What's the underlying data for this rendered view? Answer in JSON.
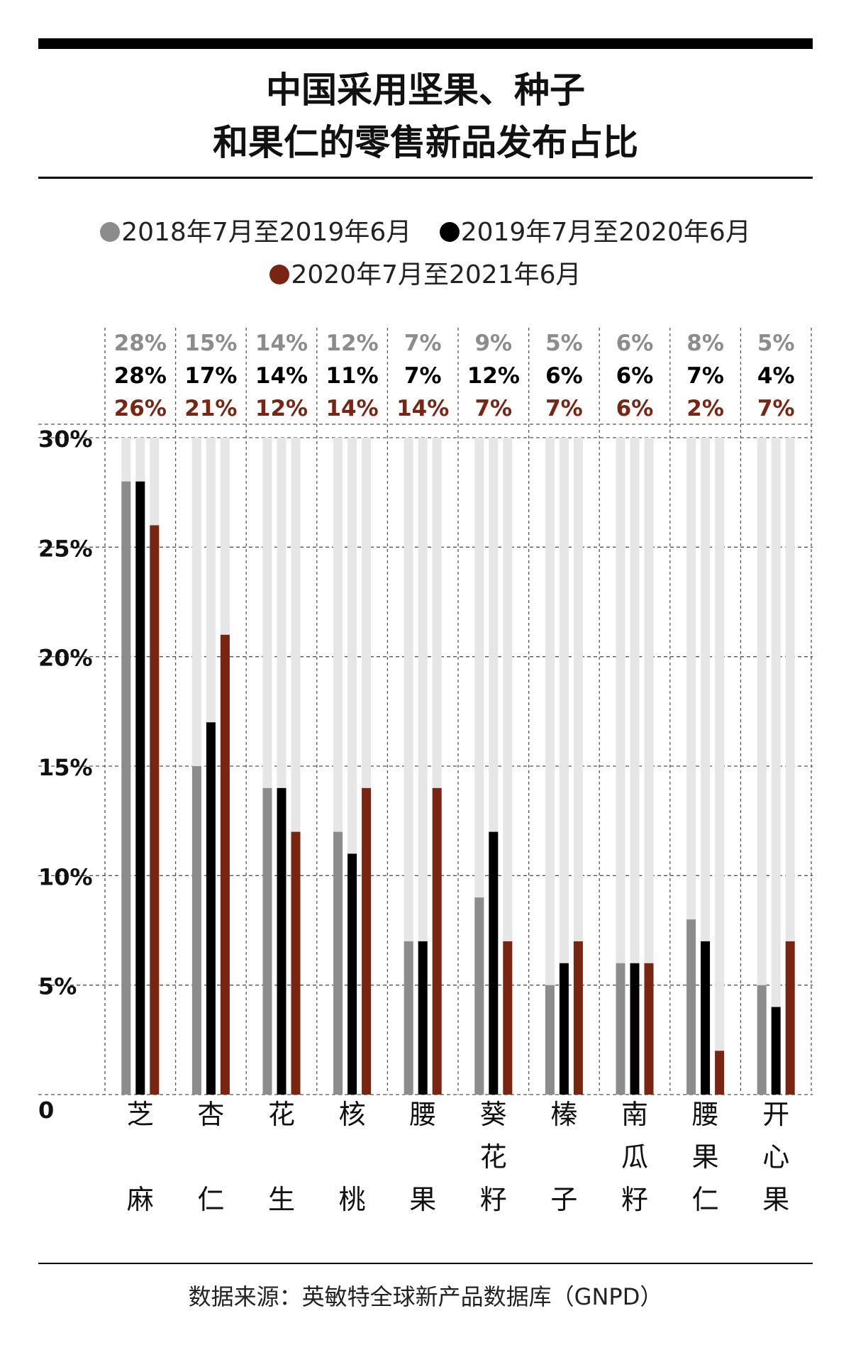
{
  "title": {
    "line1": "中国采用坚果、种子",
    "line2": "和果仁的零售新品发布占比"
  },
  "source": "数据来源：英敏特全球新产品数据库（GNPD）",
  "colors": {
    "series1": "#8c8c8c",
    "series2": "#000000",
    "series3": "#7a2512",
    "track": "#e6e6e6"
  },
  "chart_data": {
    "type": "bar",
    "categories": [
      "芝麻",
      "杏仁",
      "花生",
      "核桃",
      "腰果",
      "葵花籽",
      "榛子",
      "南瓜籽",
      "腰果仁",
      "开心果"
    ],
    "series": [
      {
        "name": "2018年7月至2019年6月",
        "values": [
          28,
          15,
          14,
          12,
          7,
          9,
          5,
          6,
          8,
          5
        ]
      },
      {
        "name": "2019年7月至2020年6月",
        "values": [
          28,
          17,
          14,
          11,
          7,
          12,
          6,
          6,
          7,
          4
        ]
      },
      {
        "name": "2020年7月至2021年6月",
        "values": [
          26,
          21,
          12,
          14,
          14,
          7,
          7,
          6,
          2,
          7
        ]
      }
    ],
    "yticks": [
      "0",
      "5%",
      "10%",
      "15%",
      "20%",
      "25%",
      "30%"
    ],
    "ylim": [
      0,
      30
    ],
    "grid": true,
    "legend": "top",
    "title": "中国采用坚果、种子和果仁的零售新品发布占比",
    "xlabel": "",
    "ylabel": ""
  }
}
